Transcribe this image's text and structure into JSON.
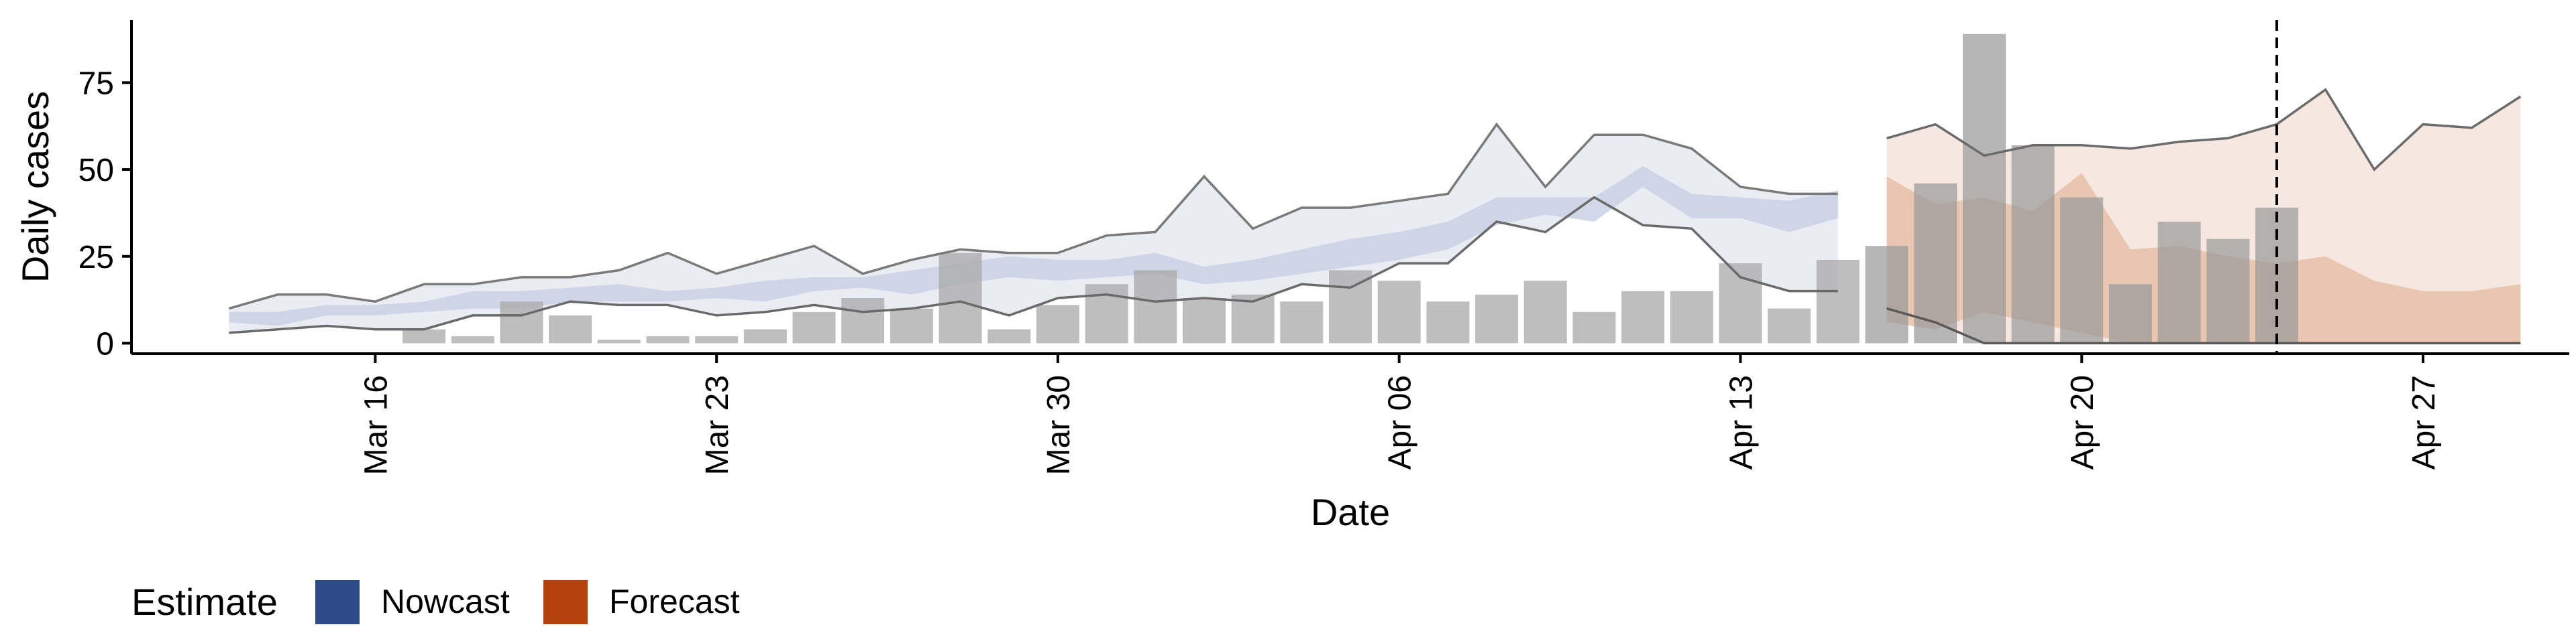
{
  "chart_data": {
    "type": "bar",
    "xlabel": "Date",
    "ylabel": "Daily cases",
    "ylim": [
      -3,
      93
    ],
    "yticks": [
      0,
      25,
      50,
      75
    ],
    "xlim": [
      "2020-03-11",
      "2020-04-30"
    ],
    "xticks": [
      {
        "date": "2020-03-16",
        "label": "Mar 16"
      },
      {
        "date": "2020-03-23",
        "label": "Mar 23"
      },
      {
        "date": "2020-03-30",
        "label": "Mar 30"
      },
      {
        "date": "2020-04-06",
        "label": "Apr 06"
      },
      {
        "date": "2020-04-13",
        "label": "Apr 13"
      },
      {
        "date": "2020-04-20",
        "label": "Apr 20"
      },
      {
        "date": "2020-04-27",
        "label": "Apr 27"
      }
    ],
    "grid": false,
    "cutoff_date": "2020-04-24",
    "observed_cases": {
      "dates": [
        "2020-03-17",
        "2020-03-18",
        "2020-03-19",
        "2020-03-20",
        "2020-03-21",
        "2020-03-22",
        "2020-03-23",
        "2020-03-24",
        "2020-03-25",
        "2020-03-26",
        "2020-03-27",
        "2020-03-28",
        "2020-03-29",
        "2020-03-30",
        "2020-03-31",
        "2020-04-01",
        "2020-04-02",
        "2020-04-03",
        "2020-04-04",
        "2020-04-05",
        "2020-04-06",
        "2020-04-07",
        "2020-04-08",
        "2020-04-09",
        "2020-04-10",
        "2020-04-11",
        "2020-04-12",
        "2020-04-13",
        "2020-04-14",
        "2020-04-15",
        "2020-04-16",
        "2020-04-17",
        "2020-04-18",
        "2020-04-19",
        "2020-04-20",
        "2020-04-21",
        "2020-04-22",
        "2020-04-23",
        "2020-04-24"
      ],
      "values": [
        4,
        2,
        12,
        8,
        1,
        2,
        2,
        4,
        9,
        13,
        10,
        26,
        4,
        11,
        17,
        21,
        13,
        14,
        12,
        21,
        18,
        12,
        14,
        18,
        9,
        15,
        15,
        23,
        10,
        24,
        28,
        46,
        89,
        57,
        42,
        17,
        35,
        30,
        39
      ]
    },
    "series": [
      {
        "name": "Nowcast",
        "color": "#2e4a87",
        "dates": [
          "2020-03-13",
          "2020-03-14",
          "2020-03-15",
          "2020-03-16",
          "2020-03-17",
          "2020-03-18",
          "2020-03-19",
          "2020-03-20",
          "2020-03-21",
          "2020-03-22",
          "2020-03-23",
          "2020-03-24",
          "2020-03-25",
          "2020-03-26",
          "2020-03-27",
          "2020-03-28",
          "2020-03-29",
          "2020-03-30",
          "2020-03-31",
          "2020-04-01",
          "2020-04-02",
          "2020-04-03",
          "2020-04-04",
          "2020-04-05",
          "2020-04-06",
          "2020-04-07",
          "2020-04-08",
          "2020-04-09",
          "2020-04-10",
          "2020-04-11",
          "2020-04-12",
          "2020-04-13",
          "2020-04-14",
          "2020-04-15"
        ],
        "outer_lower": [
          3,
          4,
          5,
          4,
          4,
          8,
          8,
          12,
          11,
          11,
          8,
          9,
          11,
          9,
          10,
          12,
          8,
          13,
          14,
          12,
          13,
          12,
          17,
          16,
          23,
          23,
          35,
          32,
          42,
          34,
          33,
          19,
          15,
          15
        ],
        "outer_upper": [
          10,
          14,
          14,
          12,
          17,
          17,
          19,
          19,
          21,
          26,
          20,
          24,
          28,
          20,
          24,
          27,
          26,
          26,
          31,
          32,
          48,
          33,
          39,
          39,
          41,
          43,
          63,
          45,
          60,
          60,
          56,
          45,
          43,
          43
        ],
        "inner_lower": [
          6,
          5,
          8,
          8,
          9,
          10,
          10,
          12,
          12,
          12,
          13,
          12,
          15,
          16,
          14,
          17,
          19,
          18,
          19,
          20,
          17,
          18,
          20,
          22,
          24,
          27,
          34,
          37,
          35,
          45,
          36,
          36,
          32,
          36
        ],
        "inner_upper": [
          9,
          9,
          11,
          11,
          12,
          15,
          15,
          16,
          17,
          15,
          16,
          18,
          19,
          19,
          21,
          23,
          25,
          24,
          24,
          26,
          22,
          24,
          27,
          30,
          32,
          35,
          42,
          42,
          42,
          51,
          43,
          42,
          41,
          44
        ]
      },
      {
        "name": "Forecast",
        "color": "#b5410f",
        "dates": [
          "2020-04-16",
          "2020-04-17",
          "2020-04-18",
          "2020-04-19",
          "2020-04-20",
          "2020-04-21",
          "2020-04-22",
          "2020-04-23",
          "2020-04-24",
          "2020-04-25",
          "2020-04-26",
          "2020-04-27",
          "2020-04-28",
          "2020-04-29"
        ],
        "outer_lower": [
          10,
          6,
          0,
          0,
          0,
          0,
          0,
          0,
          0,
          0,
          0,
          0,
          0,
          0
        ],
        "outer_upper": [
          59,
          63,
          54,
          57,
          57,
          56,
          58,
          59,
          63,
          73,
          50,
          63,
          62,
          71
        ],
        "inner_lower": [
          6,
          4,
          9,
          6,
          3,
          0,
          0,
          0,
          0,
          0,
          0,
          0,
          0,
          0
        ],
        "inner_upper": [
          48,
          40,
          42,
          38,
          49,
          27,
          28,
          25,
          23,
          25,
          18,
          15,
          15,
          17
        ]
      }
    ],
    "legend": {
      "title": "Estimate",
      "position": "bottom-left",
      "items": [
        {
          "label": "Nowcast",
          "color": "#2e4a87"
        },
        {
          "label": "Forecast",
          "color": "#b5410f"
        }
      ]
    }
  }
}
